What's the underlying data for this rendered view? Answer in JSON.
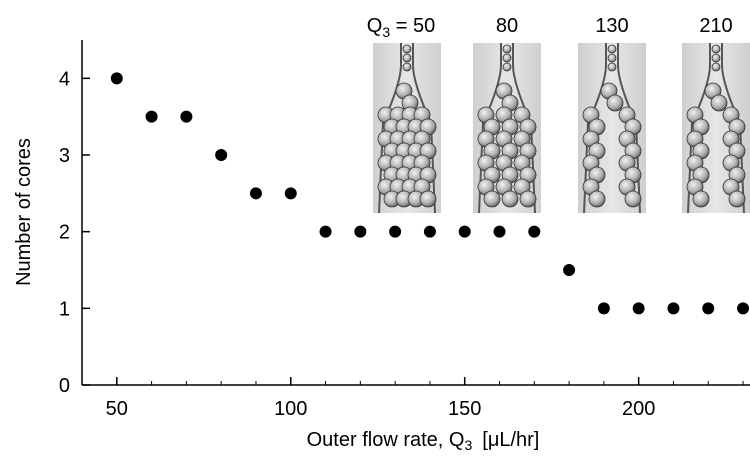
{
  "chart_data": {
    "type": "scatter",
    "xlabel": "Outer flow rate, Q",
    "xlabel_sub": "3",
    "xlabel_unit": "[μL/hr]",
    "ylabel": "Number of cores",
    "xlim": [
      40,
      232
    ],
    "ylim": [
      0,
      4.5
    ],
    "xticks": [
      50,
      100,
      150,
      200
    ],
    "yticks": [
      0,
      1,
      2,
      3,
      4
    ],
    "grid": false,
    "series": [
      {
        "x": [
          50,
          60,
          70,
          80,
          90,
          100,
          110,
          120,
          130,
          140,
          150,
          160,
          170,
          180,
          190,
          200,
          210,
          220,
          230
        ],
        "y": [
          4,
          3.5,
          3.5,
          3,
          2.5,
          2.5,
          2,
          2,
          2,
          2,
          2,
          2,
          2,
          1.5,
          1,
          1,
          1,
          1,
          1
        ],
        "color": "#000000"
      }
    ],
    "insets": [
      {
        "label_prefix": "Q",
        "label_sub": "3",
        "label_suffix": " = 50",
        "value": 50,
        "cores": 4
      },
      {
        "label_prefix": "",
        "label_sub": "",
        "label_suffix": "80",
        "value": 80,
        "cores": 3
      },
      {
        "label_prefix": "",
        "label_sub": "",
        "label_suffix": "130",
        "value": 130,
        "cores": 2
      },
      {
        "label_prefix": "",
        "label_sub": "",
        "label_suffix": "210",
        "value": 210,
        "cores": 1
      }
    ]
  }
}
